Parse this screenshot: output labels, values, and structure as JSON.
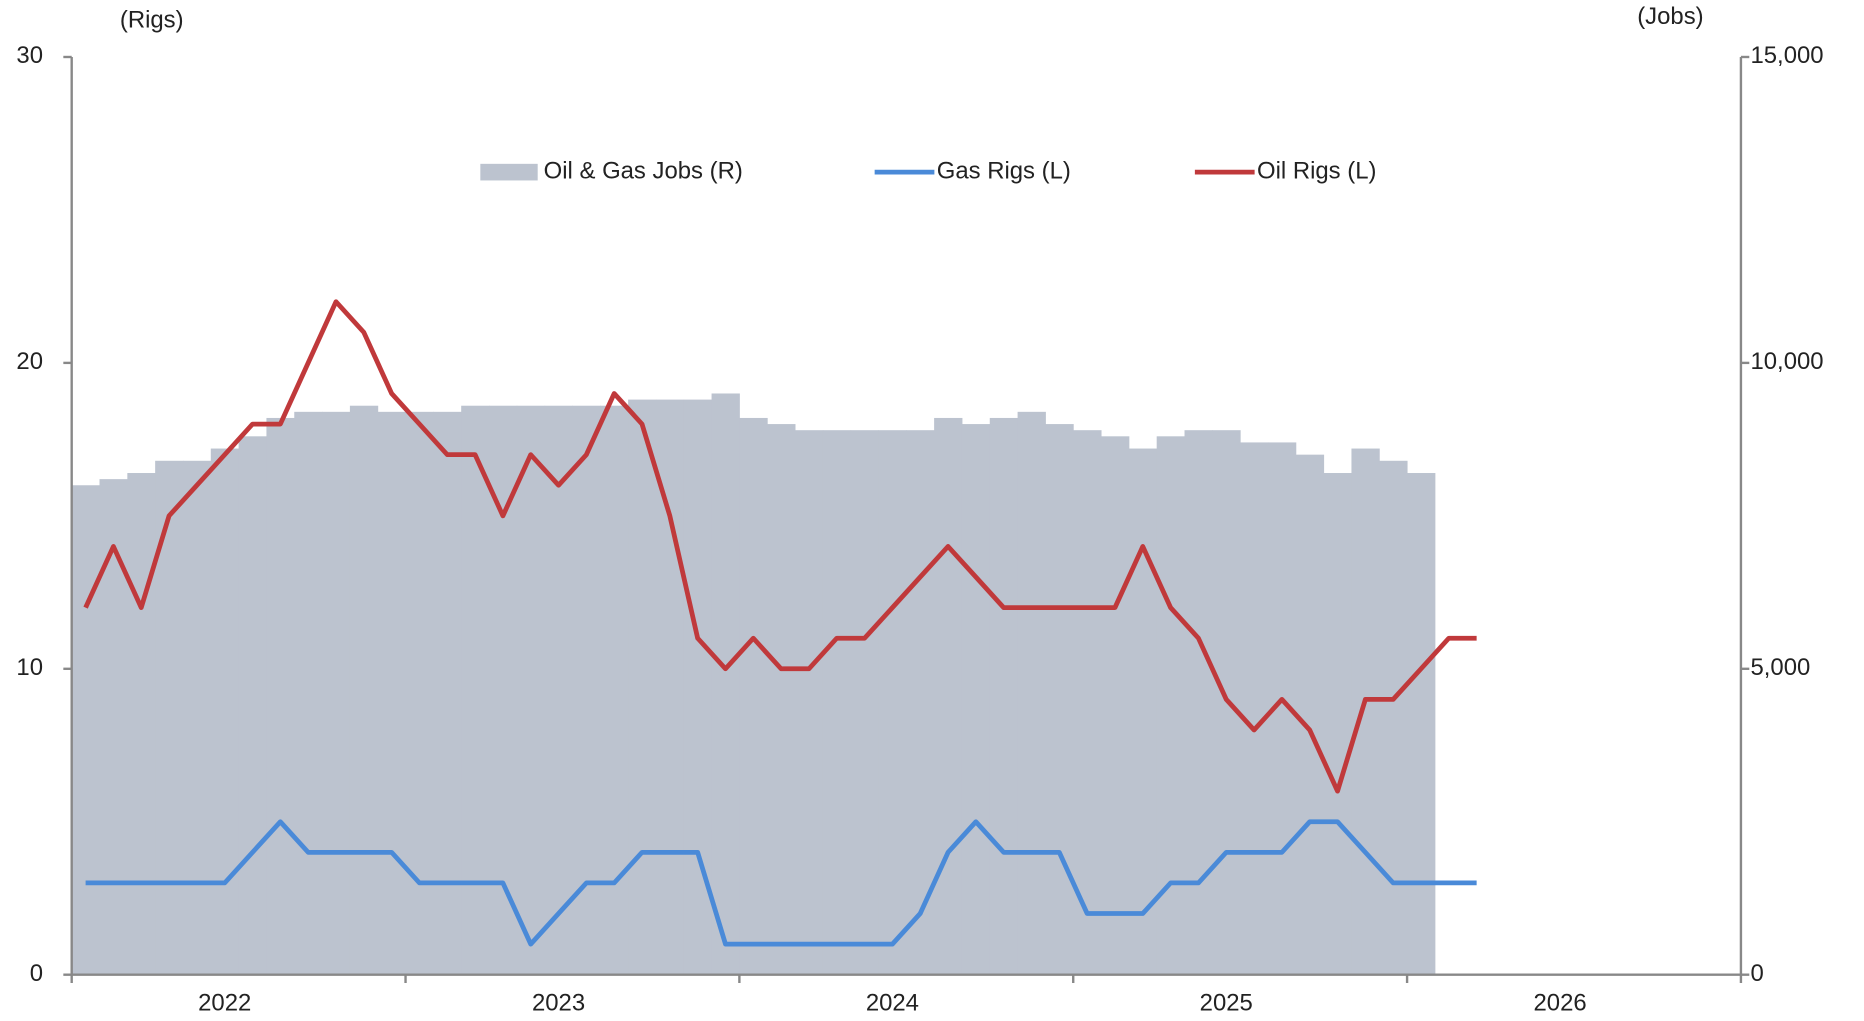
{
  "chart_data": {
    "type": "combo",
    "y_label": "(Rigs)",
    "y2_label": "(Jobs)",
    "categories": [
      null,
      null,
      null,
      null,
      null,
      "2022",
      null,
      null,
      null,
      null,
      null,
      null,
      null,
      null,
      null,
      null,
      null,
      "2023",
      null,
      null,
      null,
      null,
      null,
      null,
      null,
      null,
      null,
      null,
      null,
      "2024",
      null,
      null,
      null,
      null,
      null,
      null,
      null,
      null,
      null,
      null,
      null,
      "2025",
      null,
      null,
      null,
      null,
      null,
      null,
      null,
      null,
      null,
      null,
      null,
      "2026",
      null,
      null,
      null,
      null,
      null,
      null
    ],
    "ylim": [
      0,
      30
    ],
    "yticks": [
      0,
      10,
      20,
      30
    ],
    "y2lim": [
      0,
      15000
    ],
    "y2ticks": [
      0,
      {
        "value": 5000,
        "label": "5,000"
      },
      {
        "value": 10000,
        "label": "10,000"
      },
      {
        "value": 15000,
        "label": "15,000"
      }
    ],
    "legend": "top-center",
    "series": [
      {
        "name": "Oil & Gas Jobs (R)",
        "color": "#bcc3cf",
        "style": "step-area",
        "axis": "y2",
        "values": [
          8000,
          8100,
          8200,
          8400,
          8400,
          8600,
          8800,
          9100,
          9200,
          9200,
          9300,
          9200,
          9200,
          9200,
          9300,
          9300,
          9300,
          9300,
          9300,
          9300,
          9400,
          9400,
          9400,
          9500,
          9100,
          9000,
          8900,
          8900,
          8900,
          8900,
          8900,
          9100,
          9000,
          9100,
          9200,
          9000,
          8900,
          8800,
          8600,
          8800,
          8900,
          8900,
          8700,
          8700,
          8500,
          8200,
          8600,
          8400,
          8200,
          null,
          null,
          null,
          null,
          null,
          null,
          null,
          null,
          null,
          null,
          null
        ]
      },
      {
        "name": "Gas Rigs (L)",
        "color": "#4a8ad8",
        "style": "line",
        "values": [
          3,
          3,
          3,
          3,
          3,
          3,
          4,
          5,
          4,
          4,
          4,
          4,
          3,
          3,
          3,
          3,
          1,
          2,
          3,
          3,
          4,
          4,
          4,
          1,
          1,
          1,
          1,
          1,
          1,
          1,
          2,
          4,
          5,
          4,
          4,
          4,
          2,
          2,
          2,
          3,
          3,
          4,
          4,
          4,
          5,
          5,
          4,
          3,
          3,
          3,
          3,
          null,
          null,
          null,
          null,
          null,
          null,
          null,
          null,
          null
        ]
      },
      {
        "name": "Oil Rigs (L)",
        "color": "#c0393b",
        "style": "line",
        "values": [
          12,
          14,
          12,
          15,
          16,
          17,
          18,
          18,
          20,
          22,
          21,
          19,
          18,
          17,
          17,
          15,
          17,
          16,
          17,
          19,
          18,
          15,
          11,
          10,
          11,
          10,
          10,
          11,
          11,
          12,
          13,
          14,
          13,
          12,
          12,
          12,
          12,
          12,
          14,
          12,
          11,
          9,
          8,
          9,
          8,
          6,
          9,
          9,
          10,
          11,
          11,
          null,
          null,
          null,
          null,
          null,
          null,
          null,
          null,
          null
        ]
      }
    ]
  }
}
